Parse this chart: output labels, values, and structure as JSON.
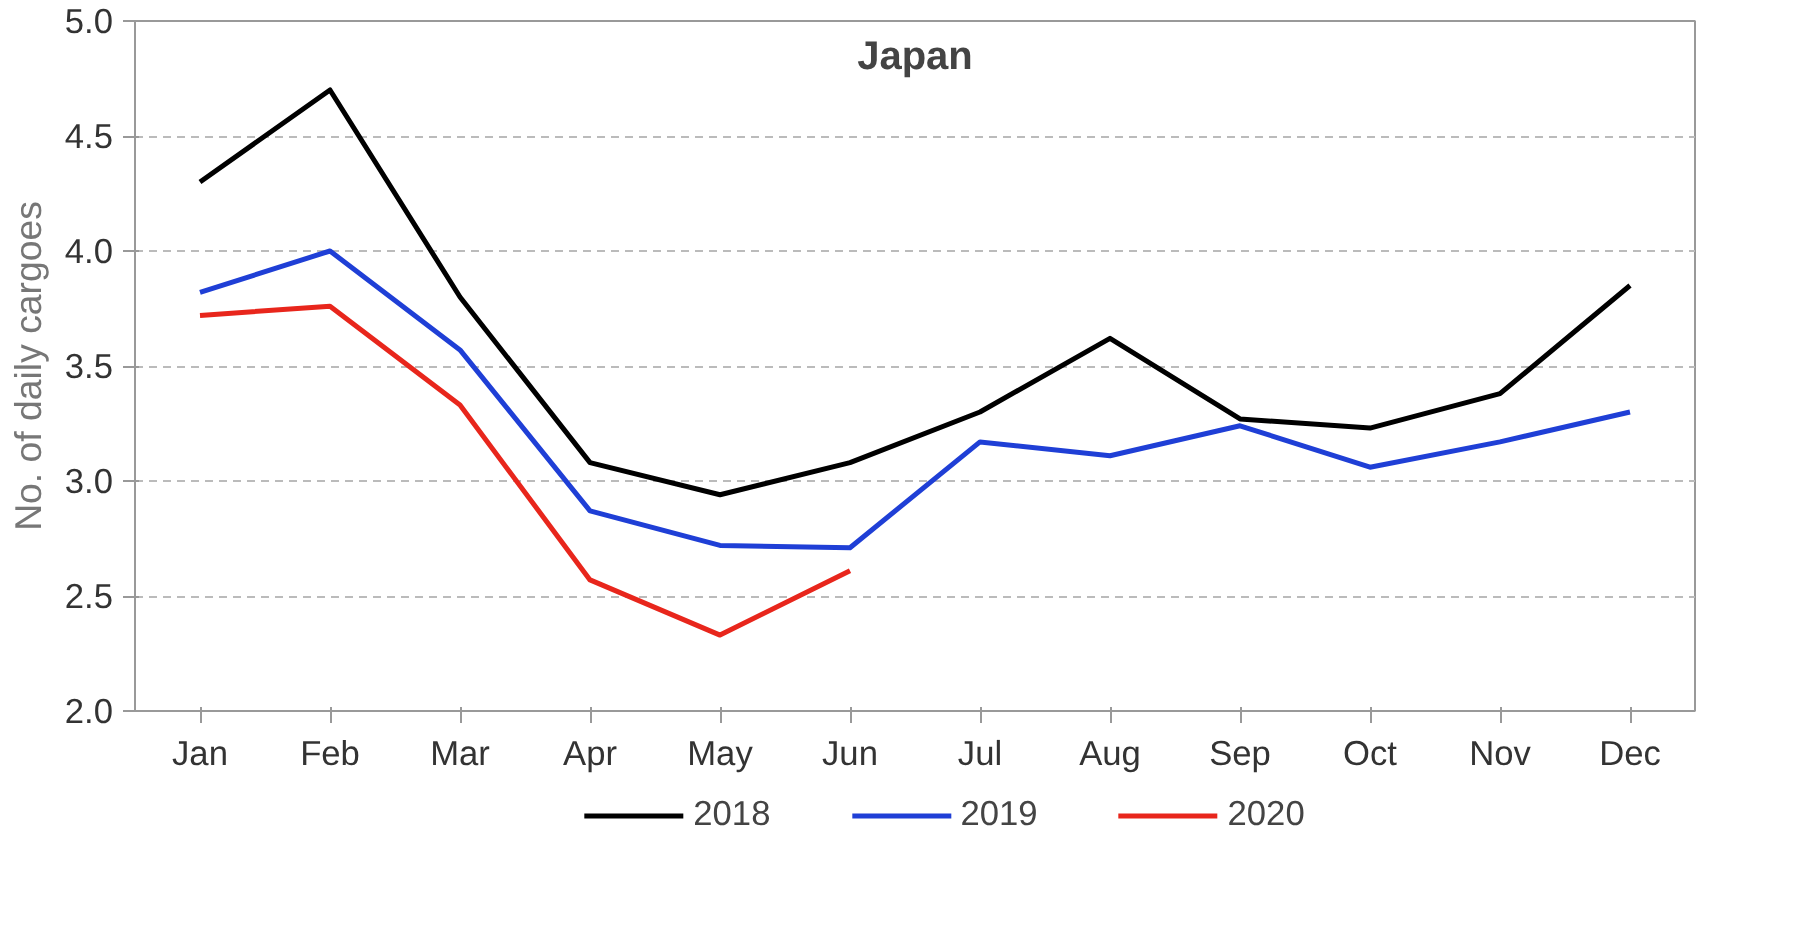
{
  "chart_data": {
    "type": "line",
    "title": "Japan",
    "ylabel": "No. of daily cargoes",
    "categories": [
      "Jan",
      "Feb",
      "Mar",
      "Apr",
      "May",
      "Jun",
      "Jul",
      "Aug",
      "Sep",
      "Oct",
      "Nov",
      "Dec"
    ],
    "series": [
      {
        "name": "2018",
        "color": "#000000",
        "values": [
          4.3,
          4.7,
          3.8,
          3.08,
          2.94,
          3.08,
          3.3,
          3.62,
          3.27,
          3.23,
          3.38,
          3.85
        ]
      },
      {
        "name": "2019",
        "color": "#1f3fd6",
        "values": [
          3.82,
          4.0,
          3.57,
          2.87,
          2.72,
          2.71,
          3.17,
          3.11,
          3.24,
          3.06,
          3.17,
          3.3
        ]
      },
      {
        "name": "2020",
        "color": "#e8261c",
        "values": [
          3.72,
          3.76,
          3.33,
          2.57,
          2.33,
          2.61,
          null,
          null,
          null,
          null,
          null,
          null
        ]
      }
    ],
    "ylim": [
      2.0,
      5.0
    ],
    "yticks": [
      {
        "value": 2.0,
        "label": "2.0"
      },
      {
        "value": 2.5,
        "label": "2.5"
      },
      {
        "value": 3.0,
        "label": "3.0"
      },
      {
        "value": 3.5,
        "label": "3.5"
      },
      {
        "value": 4.0,
        "label": "4.0"
      },
      {
        "value": 4.5,
        "label": "4.5"
      },
      {
        "value": 5.0,
        "label": "5.0"
      }
    ],
    "grid": "y",
    "legend": "bottom",
    "line_style": "solid"
  }
}
